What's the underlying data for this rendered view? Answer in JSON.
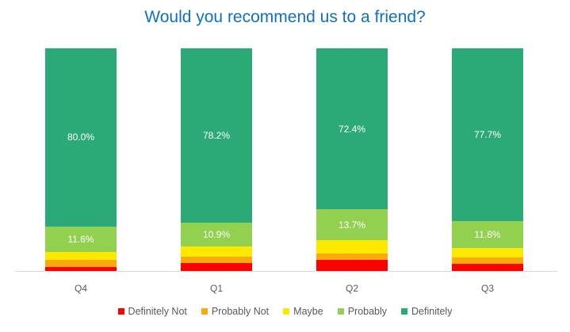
{
  "chart_data": {
    "type": "bar",
    "stacked": true,
    "percent": true,
    "title": "Would you recommend us to a friend?",
    "xlabel": "",
    "ylabel": "",
    "ylim": [
      0,
      100
    ],
    "grid": false,
    "legend_position": "bottom",
    "categories": [
      "Q4",
      "Q1",
      "Q2",
      "Q3"
    ],
    "series": [
      {
        "name": "Definitely Not",
        "color": "#FF0000",
        "values": [
          1.9,
          3.7,
          5.0,
          3.3
        ]
      },
      {
        "name": "Probably Not",
        "color": "#FAAB0B",
        "values": [
          3.0,
          2.6,
          2.8,
          2.9
        ]
      },
      {
        "name": "Maybe",
        "color": "#FFE800",
        "values": [
          3.5,
          4.6,
          6.1,
          4.3
        ]
      },
      {
        "name": "Probably",
        "color": "#92D050",
        "values": [
          11.6,
          10.9,
          13.7,
          11.8
        ],
        "labels": [
          "11.6%",
          "10.9%",
          "13.7%",
          "11.8%"
        ]
      },
      {
        "name": "Definitely",
        "color": "#2BAA78",
        "values": [
          80.0,
          78.2,
          72.4,
          77.7
        ],
        "labels": [
          "80.0%",
          "78.2%",
          "72.4%",
          "77.7%"
        ]
      }
    ]
  }
}
